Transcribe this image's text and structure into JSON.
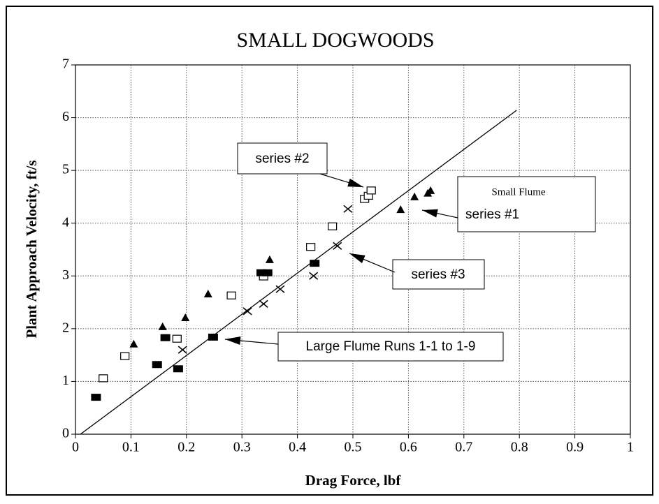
{
  "chart_data": {
    "type": "scatter",
    "title": "SMALL DOGWOODS",
    "x_label": "Drag Force, lbf",
    "y_label": "Plant Approach Velocity, ft/s",
    "xlim": [
      0,
      1
    ],
    "ylim": [
      0,
      7
    ],
    "xticks": [
      0,
      0.1,
      0.2,
      0.3,
      0.4,
      0.5,
      0.6,
      0.7,
      0.8,
      0.9,
      1
    ],
    "yticks": [
      0,
      1,
      2,
      3,
      4,
      5,
      6,
      7
    ],
    "grid": true,
    "series": [
      {
        "marker": "triangle",
        "color": "#000000",
        "x": [
          0.105,
          0.157,
          0.198,
          0.239,
          0.35,
          0.586,
          0.611,
          0.635,
          0.64
        ],
        "values": [
          1.71,
          2.04,
          2.21,
          2.66,
          3.31,
          4.26,
          4.5,
          4.57,
          4.62
        ]
      },
      {
        "marker": "open-square",
        "color": "#000000",
        "x": [
          0.05,
          0.089,
          0.183,
          0.281,
          0.339,
          0.424,
          0.463,
          0.521,
          0.528,
          0.533
        ],
        "values": [
          1.06,
          1.48,
          1.81,
          2.63,
          2.99,
          3.55,
          3.94,
          4.46,
          4.52,
          4.62
        ]
      },
      {
        "marker": "cross",
        "color": "#000000",
        "x": [
          0.193,
          0.31,
          0.339,
          0.369,
          0.429,
          0.472,
          0.491
        ],
        "values": [
          1.6,
          2.33,
          2.47,
          2.75,
          3.0,
          3.57,
          4.27
        ]
      },
      {
        "marker": "filled-square",
        "color": "#000000",
        "x": [
          0.037,
          0.147,
          0.162,
          0.185,
          0.248,
          0.335,
          0.346,
          0.431
        ],
        "values": [
          0.7,
          1.32,
          1.83,
          1.24,
          1.84,
          3.06,
          3.06,
          3.24
        ]
      }
    ],
    "trend_line": {
      "x": [
        0.009,
        0.795
      ],
      "values": [
        0,
        6.14
      ],
      "color": "#000000"
    },
    "annotations": [
      "series #2",
      "Small Flume",
      "series #1",
      "series #3",
      "Large Flume Runs 1-1 to 1-9"
    ]
  }
}
